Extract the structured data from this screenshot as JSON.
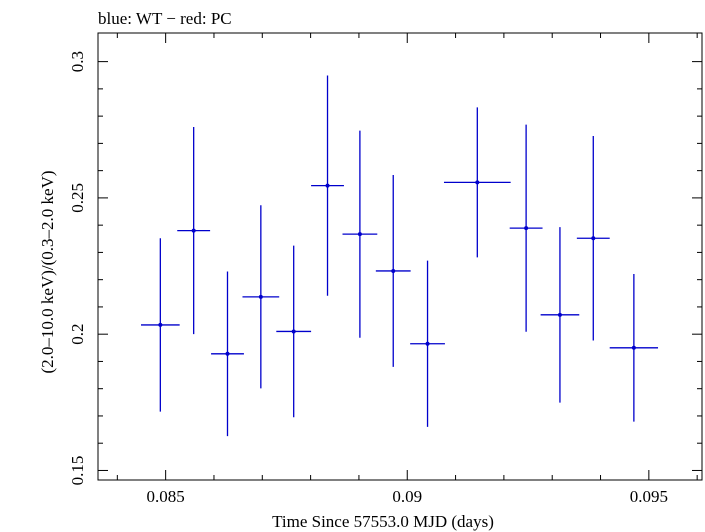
{
  "chart_data": {
    "type": "scatter",
    "title": "blue: WT − red: PC",
    "xlabel": "Time Since 57553.0 MJD (days)",
    "ylabel": "(2.0–10.0 keV)/(0.3–2.0 keV)",
    "xlim": [
      0.0836,
      0.0961
    ],
    "ylim": [
      0.1465,
      0.3105
    ],
    "x_ticks": [
      0.085,
      0.09,
      0.095
    ],
    "x_tick_labels": [
      "0.085",
      "0.09",
      "0.095"
    ],
    "y_ticks": [
      0.15,
      0.2,
      0.25,
      0.3
    ],
    "y_tick_labels": [
      "0.15",
      "0.2",
      "0.25",
      "0.3"
    ],
    "grid": false,
    "series": [
      {
        "name": "WT",
        "color": "#0000cc",
        "points": [
          {
            "x": 0.08489,
            "xerr": 0.0004,
            "y": 0.2034,
            "yerr": 0.0318
          },
          {
            "x": 0.08558,
            "xerr": 0.00034,
            "y": 0.238,
            "yerr": 0.038
          },
          {
            "x": 0.08628,
            "xerr": 0.00034,
            "y": 0.1928,
            "yerr": 0.0302
          },
          {
            "x": 0.08697,
            "xerr": 0.00038,
            "y": 0.2137,
            "yerr": 0.0336
          },
          {
            "x": 0.08765,
            "xerr": 0.00036,
            "y": 0.201,
            "yerr": 0.0315
          },
          {
            "x": 0.08835,
            "xerr": 0.00034,
            "y": 0.2545,
            "yerr": 0.0404
          },
          {
            "x": 0.08902,
            "xerr": 0.00036,
            "y": 0.2367,
            "yerr": 0.038
          },
          {
            "x": 0.08971,
            "xerr": 0.00036,
            "y": 0.2232,
            "yerr": 0.0352
          },
          {
            "x": 0.09042,
            "xerr": 0.00036,
            "y": 0.1965,
            "yerr": 0.0305
          },
          {
            "x": 0.09145,
            "xerr": 0.00069,
            "y": 0.2557,
            "yerr": 0.0275
          },
          {
            "x": 0.09246,
            "xerr": 0.00034,
            "y": 0.2389,
            "yerr": 0.038
          },
          {
            "x": 0.09316,
            "xerr": 0.0004,
            "y": 0.2071,
            "yerr": 0.0322
          },
          {
            "x": 0.09385,
            "xerr": 0.00034,
            "y": 0.2352,
            "yerr": 0.0375
          },
          {
            "x": 0.09469,
            "xerr": 0.0005,
            "y": 0.195,
            "yerr": 0.0271
          }
        ]
      }
    ]
  }
}
